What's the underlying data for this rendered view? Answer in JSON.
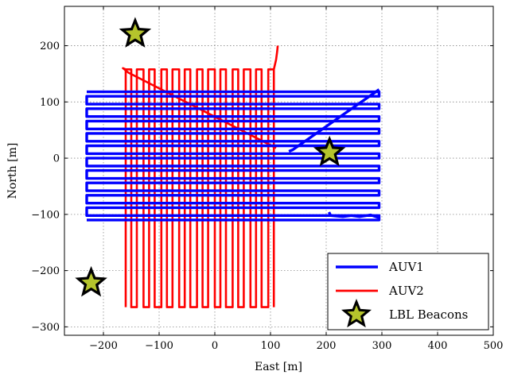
{
  "chart_data": {
    "type": "line",
    "title": "",
    "xlabel": "East [m]",
    "ylabel": "North [m]",
    "xlim": [
      -270,
      500
    ],
    "ylim": [
      -315,
      270
    ],
    "xticks": [
      -200,
      -100,
      0,
      100,
      200,
      300,
      400,
      500
    ],
    "yticks": [
      -300,
      -200,
      -100,
      0,
      100,
      200
    ],
    "xtick_labels": [
      "−200",
      "−100",
      "0",
      "100",
      "200",
      "300",
      "400",
      "500"
    ],
    "ytick_labels": [
      "−300",
      "−200",
      "−100",
      "0",
      "100",
      "200"
    ],
    "grid": true,
    "legend_position": "bottom-right",
    "series": [
      {
        "name": "AUV1",
        "color": "#0000ff",
        "lawnmower": {
          "x_min": -230,
          "x_max": 295,
          "y_values": [
            118,
            110,
            96,
            88,
            74,
            66,
            52,
            44,
            30,
            22,
            8,
            0,
            -14,
            -22,
            -36,
            -44,
            -58,
            -66,
            -80,
            -88,
            -102,
            -110
          ]
        },
        "extra_segments": [
          [
            [
              295,
              122
            ],
            [
              140,
              15
            ],
            [
              133,
              12
            ]
          ],
          [
            [
              205,
              -96
            ],
            [
              208,
              -102
            ],
            [
              230,
              -104
            ],
            [
              245,
              -102
            ],
            [
              260,
              -104
            ],
            [
              280,
              -101
            ],
            [
              295,
              -106
            ]
          ]
        ]
      },
      {
        "name": "AUV2",
        "color": "#ff0000",
        "lawnmower": {
          "y_min": -265,
          "y_max": 158,
          "x_values": [
            -160,
            -150,
            -140,
            -128,
            -118,
            -108,
            -96,
            -86,
            -76,
            -64,
            -54,
            -44,
            -32,
            -22,
            -12,
            0,
            10,
            20,
            32,
            42,
            52,
            64,
            74,
            84,
            96,
            106
          ]
        },
        "extra_segments": [
          [
            [
              -160,
              158
            ],
            [
              -165,
              160
            ],
            [
              -155,
              152
            ],
            [
              110,
              18
            ]
          ],
          [
            [
              106,
              158
            ],
            [
              110,
              175
            ],
            [
              112,
              190
            ],
            [
              113,
              200
            ]
          ]
        ]
      }
    ],
    "beacons": {
      "name": "LBL Beacons",
      "marker": "star",
      "color": "#b5c42c",
      "points": [
        [
          -143,
          221
        ],
        [
          206,
          10
        ],
        [
          -222,
          -222
        ]
      ]
    }
  }
}
